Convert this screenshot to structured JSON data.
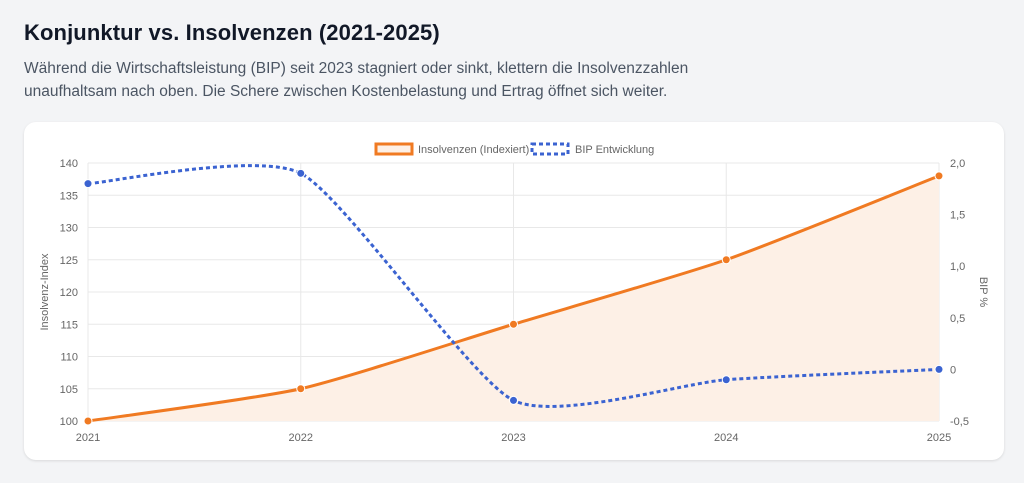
{
  "header": {
    "title": "Konjunktur vs. Insolvenzen (2021-2025)",
    "description": "Während die Wirtschaftsleistung (BIP) seit 2023 stagniert oder sinkt, klettern die Insolvenzzahlen unaufhaltsam nach oben. Die Schere zwischen Kostenbelastung und Ertrag öffnet sich weiter."
  },
  "chart_data": {
    "type": "line",
    "x": [
      "2021",
      "2022",
      "2023",
      "2024",
      "2025"
    ],
    "series": [
      {
        "name": "Insolvenzen (Indexiert)",
        "axis": "left",
        "values": [
          100,
          105,
          115,
          125,
          138
        ],
        "color": "#f07a22",
        "fill": "#fdf0e6",
        "style": "solid",
        "filled": true
      },
      {
        "name": "BIP Entwicklung",
        "axis": "right",
        "values": [
          1.8,
          1.9,
          -0.3,
          -0.1,
          0.0
        ],
        "color": "#3b63d1",
        "style": "dotted",
        "filled": false
      }
    ],
    "y_left": {
      "label": "Insolvenz-Index",
      "min": 100,
      "max": 140,
      "ticks": [
        "100",
        "105",
        "110",
        "115",
        "120",
        "125",
        "130",
        "135",
        "140"
      ]
    },
    "y_right": {
      "label": "BIP %",
      "min": -0.5,
      "max": 2.0,
      "ticks": [
        "-0,5",
        "0",
        "0,5",
        "1,0",
        "1,5",
        "2,0"
      ]
    },
    "grid": true,
    "legend_position": "top-center"
  }
}
